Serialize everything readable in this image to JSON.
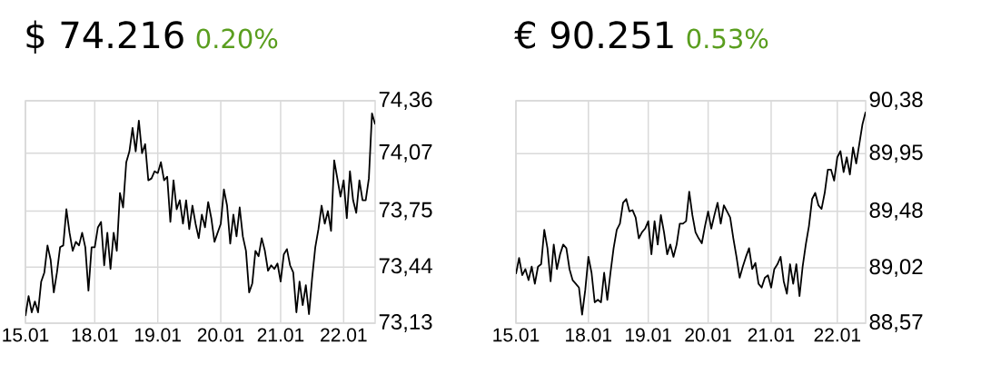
{
  "chart_data": [
    {
      "type": "line",
      "title": "$ 74.216",
      "subtitle": "0.20%",
      "grid": true,
      "ylim": [
        73.13,
        74.36
      ],
      "yticks": [
        {
          "value": 73.13,
          "label": "73,13"
        },
        {
          "value": 73.44,
          "label": "73,44"
        },
        {
          "value": 73.75,
          "label": "73,75"
        },
        {
          "value": 74.07,
          "label": "74,07"
        },
        {
          "value": 74.36,
          "label": "74,36"
        }
      ],
      "categories": [
        "15.01",
        null,
        null,
        null,
        null,
        null,
        null,
        null,
        null,
        null,
        null,
        null,
        null,
        null,
        null,
        null,
        null,
        null,
        null,
        null,
        null,
        null,
        "18.01",
        null,
        null,
        null,
        null,
        null,
        null,
        null,
        null,
        null,
        null,
        null,
        null,
        null,
        null,
        null,
        null,
        null,
        null,
        null,
        "19.01",
        null,
        null,
        null,
        null,
        null,
        null,
        null,
        null,
        null,
        null,
        null,
        null,
        null,
        null,
        null,
        null,
        null,
        null,
        null,
        "20.01",
        null,
        null,
        null,
        null,
        null,
        null,
        null,
        null,
        null,
        null,
        null,
        null,
        null,
        null,
        null,
        null,
        null,
        null,
        "21.01",
        null,
        null,
        null,
        null,
        null,
        null,
        null,
        null,
        null,
        null,
        null,
        null,
        null,
        null,
        null,
        null,
        null,
        null,
        null,
        "22.01",
        null,
        null,
        null,
        null,
        null,
        null,
        null,
        null,
        null,
        null
      ],
      "series": [
        {
          "color": "#000000",
          "values": [
            73.17,
            73.28,
            73.19,
            73.25,
            73.19,
            73.36,
            73.41,
            73.56,
            73.48,
            73.3,
            73.41,
            73.55,
            73.56,
            73.76,
            73.63,
            73.53,
            73.58,
            73.56,
            73.63,
            73.55,
            73.31,
            73.55,
            73.55,
            73.66,
            73.69,
            73.45,
            73.63,
            73.43,
            73.63,
            73.53,
            73.85,
            73.77,
            74.02,
            74.08,
            74.21,
            74.08,
            74.25,
            74.07,
            74.12,
            73.92,
            73.93,
            73.97,
            73.96,
            74.02,
            73.92,
            73.94,
            73.69,
            73.92,
            73.76,
            73.81,
            73.68,
            73.81,
            73.65,
            73.78,
            73.68,
            73.6,
            73.73,
            73.66,
            73.8,
            73.71,
            73.58,
            73.63,
            73.68,
            73.87,
            73.78,
            73.57,
            73.73,
            73.61,
            73.77,
            73.61,
            73.53,
            73.3,
            73.35,
            73.53,
            73.5,
            73.6,
            73.53,
            73.42,
            73.45,
            73.43,
            73.46,
            73.36,
            73.51,
            73.54,
            73.45,
            73.41,
            73.19,
            73.36,
            73.23,
            73.34,
            73.18,
            73.38,
            73.55,
            73.65,
            73.78,
            73.68,
            73.75,
            73.64,
            74.03,
            73.93,
            73.83,
            73.92,
            73.71,
            73.97,
            73.81,
            73.74,
            73.92,
            73.81,
            73.81,
            73.93,
            74.29,
            74.23
          ]
        }
      ]
    },
    {
      "type": "line",
      "title": "€ 90.251",
      "subtitle": "0.53%",
      "grid": true,
      "ylim": [
        88.57,
        90.38
      ],
      "yticks": [
        {
          "value": 88.57,
          "label": "88,57"
        },
        {
          "value": 89.02,
          "label": "89,02"
        },
        {
          "value": 89.48,
          "label": "89,48"
        },
        {
          "value": 89.95,
          "label": "89,95"
        },
        {
          "value": 90.38,
          "label": "90,38"
        }
      ],
      "categories": [
        "15.01",
        null,
        null,
        null,
        null,
        null,
        null,
        null,
        null,
        null,
        null,
        null,
        null,
        null,
        null,
        null,
        null,
        null,
        null,
        null,
        null,
        null,
        null,
        "18.01",
        null,
        null,
        null,
        null,
        null,
        null,
        null,
        null,
        null,
        null,
        null,
        null,
        null,
        null,
        null,
        null,
        null,
        null,
        "19.01",
        null,
        null,
        null,
        null,
        null,
        null,
        null,
        null,
        null,
        null,
        null,
        null,
        null,
        null,
        null,
        null,
        null,
        null,
        "20.01",
        null,
        null,
        null,
        null,
        null,
        null,
        null,
        null,
        null,
        null,
        null,
        null,
        null,
        null,
        null,
        null,
        null,
        null,
        null,
        "21.01",
        null,
        null,
        null,
        null,
        null,
        null,
        null,
        null,
        null,
        null,
        null,
        null,
        null,
        null,
        null,
        null,
        null,
        null,
        null,
        null,
        "22.01",
        null,
        null,
        null,
        null,
        null,
        null,
        null,
        null,
        null
      ],
      "series": [
        {
          "color": "#000000",
          "values": [
            88.97,
            89.1,
            88.96,
            89.01,
            88.92,
            89.03,
            88.89,
            89.03,
            89.05,
            89.33,
            89.18,
            88.91,
            89.21,
            89.01,
            89.13,
            89.21,
            89.18,
            89.01,
            88.92,
            88.89,
            88.86,
            88.64,
            88.84,
            89.11,
            88.98,
            88.74,
            88.76,
            88.74,
            88.98,
            88.76,
            88.98,
            89.18,
            89.33,
            89.38,
            89.55,
            89.58,
            89.48,
            89.49,
            89.43,
            89.26,
            89.31,
            89.34,
            89.4,
            89.13,
            89.4,
            89.21,
            89.45,
            89.31,
            89.13,
            89.21,
            89.11,
            89.21,
            89.38,
            89.38,
            89.4,
            89.64,
            89.45,
            89.31,
            89.26,
            89.22,
            89.36,
            89.48,
            89.34,
            89.45,
            89.55,
            89.38,
            89.53,
            89.48,
            89.43,
            89.26,
            89.11,
            88.94,
            89.03,
            89.11,
            89.18,
            89.01,
            89.06,
            88.89,
            88.86,
            88.94,
            88.96,
            88.86,
            89.01,
            89.05,
            89.11,
            88.91,
            88.81,
            89.05,
            88.89,
            89.05,
            88.79,
            89.03,
            89.21,
            89.36,
            89.58,
            89.63,
            89.53,
            89.5,
            89.63,
            89.82,
            89.82,
            89.73,
            89.92,
            89.97,
            89.8,
            89.92,
            89.78,
            90.0,
            89.87,
            90.03,
            90.19,
            90.29
          ]
        }
      ]
    }
  ]
}
